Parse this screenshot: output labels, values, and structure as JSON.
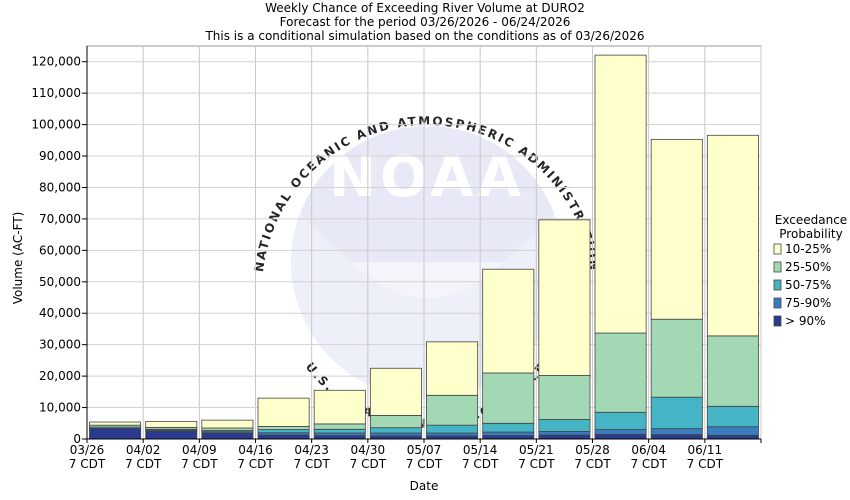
{
  "chart_data": {
    "type": "bar",
    "stacked": true,
    "title_lines": [
      "Weekly Chance of Exceeding River Volume at DURO2",
      "Forecast for the period 03/26/2026 - 06/24/2026",
      "This is a conditional simulation based on the conditions as of 03/26/2026"
    ],
    "xlabel": "Date",
    "ylabel": "Volume (AC-FT)",
    "ylim": [
      0,
      125000
    ],
    "yticks": [
      0,
      10000,
      20000,
      30000,
      40000,
      50000,
      60000,
      70000,
      80000,
      90000,
      100000,
      110000,
      120000
    ],
    "ytick_labels": [
      "0",
      "10,000",
      "20,000",
      "30,000",
      "40,000",
      "50,000",
      "60,000",
      "70,000",
      "80,000",
      "90,000",
      "100,000",
      "110,000",
      "120,000"
    ],
    "xtick_labels": [
      {
        "date": "03/26",
        "tz": "7 CDT"
      },
      {
        "date": "04/02",
        "tz": "7 CDT"
      },
      {
        "date": "04/09",
        "tz": "7 CDT"
      },
      {
        "date": "04/16",
        "tz": "7 CDT"
      },
      {
        "date": "04/23",
        "tz": "7 CDT"
      },
      {
        "date": "04/30",
        "tz": "7 CDT"
      },
      {
        "date": "05/07",
        "tz": "7 CDT"
      },
      {
        "date": "05/14",
        "tz": "7 CDT"
      },
      {
        "date": "05/21",
        "tz": "7 CDT"
      },
      {
        "date": "05/28",
        "tz": "7 CDT"
      },
      {
        "date": "06/04",
        "tz": "7 CDT"
      },
      {
        "date": "06/11",
        "tz": "7 CDT"
      }
    ],
    "weeks": [
      "03/26",
      "04/02",
      "04/09",
      "04/16",
      "04/23",
      "04/30",
      "05/07",
      "05/14",
      "05/21",
      "05/28",
      "06/04",
      "06/11"
    ],
    "series": [
      {
        "name": "> 90%",
        "color": "#2a3a8f",
        "values": [
          3400,
          2500,
          1900,
          1300,
          1100,
          1000,
          1000,
          1100,
          1300,
          1500,
          1400,
          1200
        ]
      },
      {
        "name": "75-90%",
        "color": "#3a7dbf",
        "values": [
          0,
          300,
          400,
          700,
          800,
          900,
          900,
          1100,
          1100,
          1500,
          1900,
          2700
        ]
      },
      {
        "name": "50-75%",
        "color": "#45b4c4",
        "values": [
          400,
          300,
          400,
          1000,
          1200,
          1700,
          2500,
          2800,
          3800,
          5500,
          10000,
          6500
        ]
      },
      {
        "name": "25-50%",
        "color": "#a2d8b3",
        "values": [
          600,
          600,
          800,
          1000,
          1700,
          3900,
          9500,
          16000,
          14000,
          25200,
          24800,
          22400
        ]
      },
      {
        "name": "10-25%",
        "color": "#ffffcc",
        "values": [
          1000,
          1900,
          2500,
          9000,
          10700,
          15000,
          17000,
          33000,
          49500,
          88400,
          57200,
          63800
        ]
      }
    ],
    "legend": {
      "title_lines": [
        "Exceedance",
        "Probability"
      ],
      "position": "right",
      "order": [
        "10-25%",
        "25-50%",
        "50-75%",
        "75-90%",
        "> 90%"
      ]
    },
    "grid": true,
    "watermark": "NOAA"
  },
  "watermark_text": {
    "ring_top": "NATIONAL OCEANIC AND ATMOSPHERIC ADMINISTRATION",
    "ring_bottom": "U.S. DEPARTMENT OF COMMERCE",
    "logo": "NOAA"
  }
}
